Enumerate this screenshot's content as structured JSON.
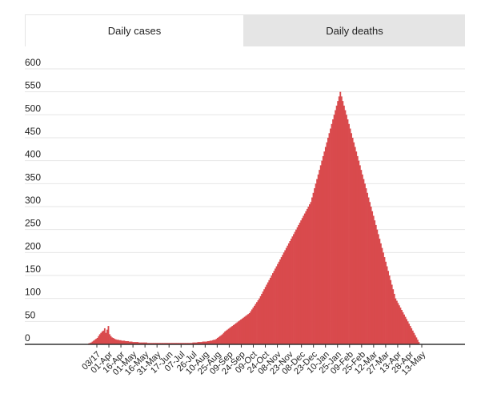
{
  "tabs": [
    {
      "label": "Daily cases",
      "active": true
    },
    {
      "label": "Daily deaths",
      "active": false
    }
  ],
  "colors": {
    "bar": "#d94a4d",
    "grid": "#e6e6e6",
    "axis": "#333333"
  },
  "chart_data": {
    "type": "bar",
    "title": "",
    "xlabel": "",
    "ylabel": "",
    "ylim": [
      0,
      600
    ],
    "yticks": [
      0,
      50,
      100,
      150,
      200,
      250,
      300,
      350,
      400,
      450,
      500,
      550,
      600
    ],
    "xticks": [
      "03/17",
      "01-Apr",
      "16-Apr",
      "01-May",
      "16-May",
      "31-May",
      "17-Jun",
      "07-Jul",
      "26-Jul",
      "10-Aug",
      "25-Aug",
      "09-Sep",
      "24-Sep",
      "09-Oct",
      "24-Oct",
      "08-Nov",
      "23-Nov",
      "08-Dec",
      "23-Dec",
      "10-Jan",
      "25-Jan",
      "09-Feb",
      "25-Feb",
      "12-Mar",
      "27-Mar",
      "13-Apr",
      "28-Apr",
      "13-May"
    ],
    "grid": true,
    "series": [
      {
        "values": [
          2,
          3,
          4,
          6,
          8,
          10,
          12,
          14,
          18,
          22,
          25,
          28,
          30,
          35,
          25,
          32,
          40,
          22,
          18,
          15,
          14,
          12,
          11,
          10,
          10,
          9,
          9,
          8,
          8,
          8,
          7,
          7,
          7,
          6,
          6,
          6,
          5,
          5,
          5,
          5,
          5,
          4,
          4,
          4,
          4,
          4,
          4,
          4,
          3,
          3,
          3,
          3,
          3,
          3,
          3,
          3,
          3,
          3,
          3,
          3,
          3,
          3,
          3,
          3,
          3,
          3,
          3,
          3,
          3,
          3,
          3,
          3,
          3,
          3,
          3,
          3,
          3,
          3,
          3,
          3,
          3,
          3,
          3,
          3,
          3,
          4,
          4,
          4,
          4,
          5,
          5,
          5,
          5,
          6,
          6,
          6,
          6,
          7,
          7,
          8,
          8,
          9,
          10,
          10,
          12,
          14,
          16,
          18,
          20,
          22,
          25,
          28,
          30,
          32,
          34,
          36,
          38,
          40,
          42,
          44,
          46,
          48,
          50,
          52,
          54,
          56,
          58,
          60,
          62,
          64,
          66,
          68,
          72,
          76,
          80,
          84,
          88,
          92,
          96,
          100,
          105,
          110,
          115,
          120,
          125,
          130,
          135,
          140,
          145,
          150,
          155,
          160,
          165,
          170,
          175,
          180,
          185,
          190,
          195,
          200,
          205,
          210,
          215,
          220,
          225,
          230,
          235,
          240,
          245,
          250,
          255,
          260,
          265,
          270,
          275,
          280,
          285,
          290,
          295,
          300,
          305,
          310,
          320,
          330,
          340,
          350,
          360,
          370,
          380,
          390,
          400,
          410,
          420,
          430,
          440,
          450,
          460,
          470,
          480,
          490,
          500,
          510,
          520,
          530,
          540,
          550,
          540,
          530,
          520,
          510,
          500,
          490,
          480,
          470,
          460,
          450,
          440,
          430,
          420,
          410,
          400,
          390,
          380,
          370,
          360,
          350,
          340,
          330,
          320,
          310,
          300,
          290,
          280,
          270,
          260,
          250,
          240,
          230,
          220,
          210,
          200,
          190,
          180,
          170,
          160,
          150,
          140,
          130,
          120,
          110,
          100,
          95,
          90,
          85,
          80,
          75,
          70,
          65,
          60,
          55,
          50,
          45,
          40,
          35,
          30,
          25,
          20,
          15,
          10,
          5
        ]
      }
    ]
  }
}
